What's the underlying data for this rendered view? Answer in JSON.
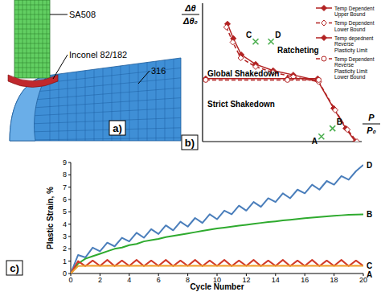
{
  "diagram": {
    "title": "a)",
    "labels": [
      "SA508",
      "Inconel 82/182",
      "316"
    ]
  },
  "chart_data": [
    {
      "type": "line",
      "title": "b)",
      "xlabel": {
        "numerator": "P",
        "denominator": "P₀"
      },
      "ylabel": {
        "numerator": "Δθ",
        "denominator": "Δθ₀"
      },
      "xlim": [
        0,
        3
      ],
      "ylim": [
        0,
        2.2
      ],
      "xticks": [],
      "yticks": [],
      "tick_labels": false,
      "grid": false,
      "legend": "upper right",
      "series": [
        {
          "name": "Temp Dependent Upper Bound",
          "color": "#b22222",
          "marker": "diamond",
          "line_style": "solid",
          "x": [
            0.47,
            0.58,
            0.73,
            1.0,
            1.33,
            1.71,
            2.17,
            2.47,
            2.7,
            2.88
          ],
          "values": [
            1.87,
            1.64,
            1.38,
            1.23,
            1.13,
            1.06,
            0.97,
            0.53,
            0.21,
            0.0
          ]
        },
        {
          "name": "Temp Dependent Lower Bound",
          "color": "#b22222",
          "marker": "diamond-open",
          "line_style": "dashed",
          "x": [
            0.45,
            0.57,
            0.72,
            1.0,
            1.33,
            1.71,
            2.19,
            2.5,
            2.73,
            2.91
          ],
          "values": [
            1.82,
            1.58,
            1.33,
            1.19,
            1.1,
            1.03,
            0.95,
            0.5,
            0.19,
            0.0
          ]
        },
        {
          "name": "Temp depednent Reverse Plasticity Limit",
          "color": "#b22222",
          "marker": "diamond",
          "line_style": "solid",
          "x": [
            0.06,
            1.6,
            2.17
          ],
          "values": [
            1.0,
            1.0,
            1.0
          ]
        },
        {
          "name": "Temp Dependent Reverse Plasticity Limit Lower Bound",
          "color": "#b22222",
          "marker": "circle-open",
          "line_style": "dashed",
          "x": [
            0.06,
            1.6,
            2.19
          ],
          "values": [
            0.98,
            0.98,
            0.98
          ]
        },
        {
          "type": "scatter",
          "color": "#4caf50",
          "marker": "x",
          "x": [
            1.0,
            1.29,
            2.24,
            2.45
          ],
          "values": [
            1.59,
            1.59,
            0.08,
            0.21
          ],
          "labels": [
            "C",
            "D",
            "A",
            "B"
          ]
        }
      ],
      "annotations": [
        "Global Shakedown",
        "Ratcheting",
        "Strict Shakedown"
      ]
    },
    {
      "type": "line",
      "title": "c)",
      "xlabel": "Cycle Number",
      "ylabel": "Plastic Strain, %",
      "xlim": [
        0,
        20
      ],
      "ylim": [
        0,
        9
      ],
      "xticks": [
        0,
        2,
        4,
        6,
        8,
        10,
        12,
        14,
        16,
        18,
        20
      ],
      "yticks": [
        0,
        1,
        2,
        3,
        4,
        5,
        6,
        7,
        8,
        9
      ],
      "grid": false,
      "x": [
        0,
        0.5,
        1,
        1.5,
        2,
        2.5,
        3,
        3.5,
        4,
        4.5,
        5,
        5.5,
        6,
        6.5,
        7,
        7.5,
        8,
        8.5,
        9,
        9.5,
        10,
        10.5,
        11,
        11.5,
        12,
        12.5,
        13,
        13.5,
        14,
        14.5,
        15,
        15.5,
        16,
        16.5,
        17,
        17.5,
        18,
        18.5,
        19,
        19.5,
        20
      ],
      "series": [
        {
          "name": "D",
          "color": "#4a7ebb",
          "line_style": "solid",
          "values": [
            0,
            1.5,
            1.3,
            2.1,
            1.8,
            2.5,
            2.2,
            2.9,
            2.6,
            3.3,
            2.9,
            3.6,
            3.2,
            3.9,
            3.5,
            4.2,
            3.8,
            4.5,
            4.1,
            4.8,
            4.4,
            5.1,
            4.8,
            5.5,
            5.1,
            5.8,
            5.4,
            6.1,
            5.8,
            6.5,
            6.1,
            6.8,
            6.5,
            7.2,
            6.8,
            7.5,
            7.2,
            7.9,
            7.6,
            8.3,
            8.8
          ]
        },
        {
          "name": "B",
          "color": "#2eaa2e",
          "line_style": "solid",
          "values": [
            0,
            0.8,
            1.2,
            1.4,
            1.6,
            1.8,
            2.0,
            2.1,
            2.3,
            2.4,
            2.6,
            2.7,
            2.8,
            2.95,
            3.05,
            3.15,
            3.25,
            3.35,
            3.45,
            3.55,
            3.65,
            3.72,
            3.8,
            3.88,
            3.95,
            4.02,
            4.1,
            4.17,
            4.23,
            4.3,
            4.36,
            4.42,
            4.48,
            4.53,
            4.58,
            4.63,
            4.68,
            4.72,
            4.76,
            4.78,
            4.8
          ]
        },
        {
          "name": "C",
          "color": "#d03a2a",
          "line_style": "solid",
          "values": [
            0,
            1.0,
            0.6,
            1.05,
            0.62,
            1.1,
            0.6,
            1.05,
            0.62,
            1.1,
            0.6,
            1.05,
            0.62,
            1.1,
            0.6,
            1.05,
            0.62,
            1.1,
            0.6,
            1.05,
            0.62,
            1.1,
            0.6,
            1.05,
            0.62,
            1.1,
            0.6,
            1.05,
            0.62,
            1.1,
            0.6,
            1.05,
            0.62,
            1.1,
            0.6,
            1.05,
            0.62,
            1.1,
            0.6,
            1.05,
            0.62
          ]
        },
        {
          "name": "A",
          "color": "#f0a030",
          "line_style": "solid",
          "values": [
            0,
            0.6,
            0.62,
            0.63,
            0.62,
            0.63,
            0.62,
            0.63,
            0.62,
            0.63,
            0.62,
            0.63,
            0.62,
            0.63,
            0.62,
            0.63,
            0.62,
            0.63,
            0.62,
            0.63,
            0.62,
            0.63,
            0.62,
            0.63,
            0.62,
            0.63,
            0.62,
            0.63,
            0.62,
            0.63,
            0.62,
            0.63,
            0.62,
            0.63,
            0.62,
            0.63,
            0.62,
            0.63,
            0.62,
            0.63,
            0.62
          ]
        }
      ]
    }
  ]
}
